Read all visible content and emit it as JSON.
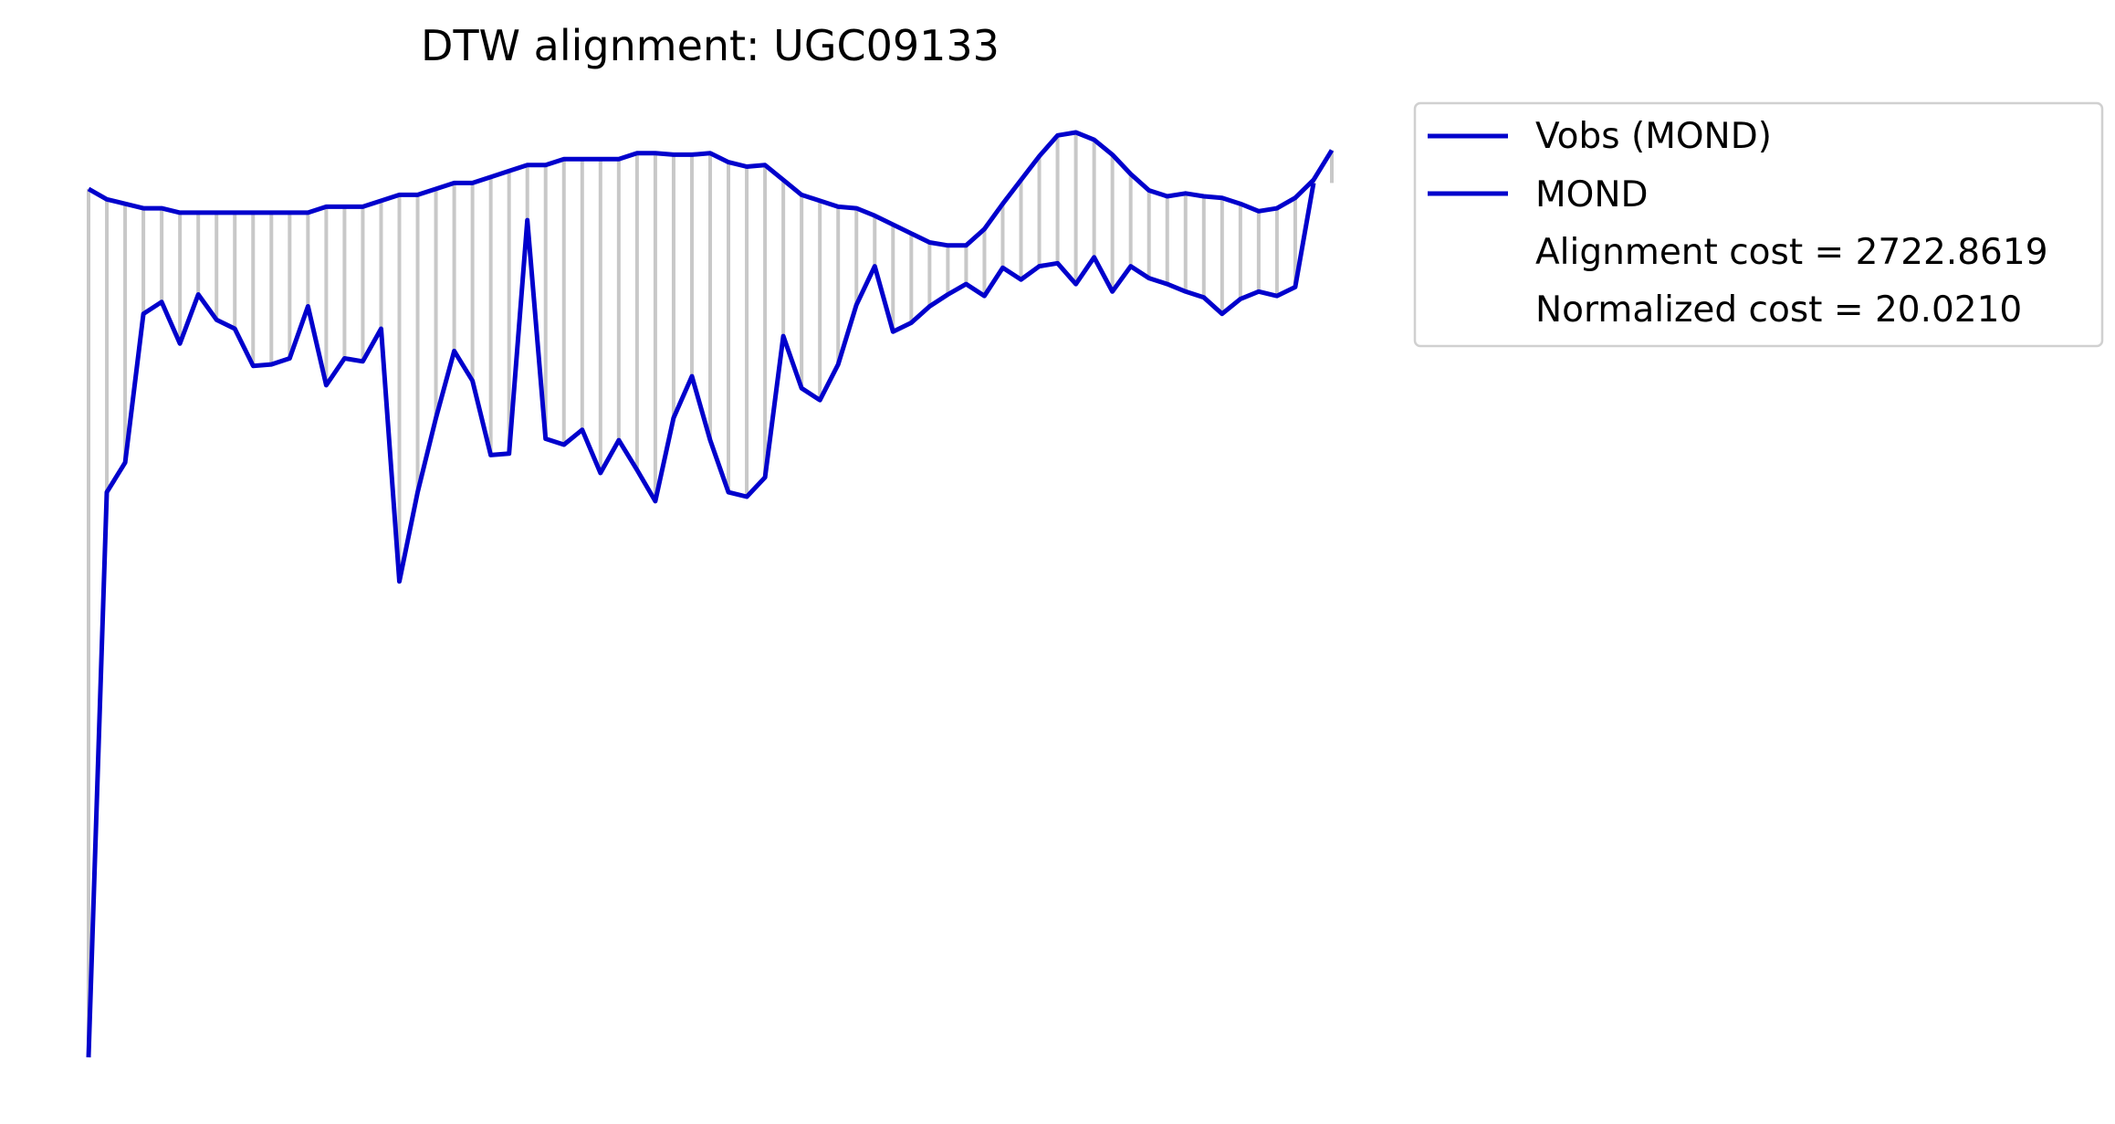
{
  "chart_data": {
    "type": "line",
    "title": "DTW alignment: UGC09133",
    "xlabel": "",
    "ylabel": "",
    "axes_visible": false,
    "grid": false,
    "legend_placement": "outside-top-right",
    "alignment_connectors_color": "#c8c8c8",
    "series": [
      {
        "name": "Vobs (MOND)",
        "color": "#0000cc",
        "values": [
          0.804,
          0.797,
          0.794,
          0.791,
          0.791,
          0.788,
          0.788,
          0.788,
          0.788,
          0.788,
          0.788,
          0.788,
          0.788,
          0.792,
          0.792,
          0.792,
          0.796,
          0.8,
          0.8,
          0.804,
          0.808,
          0.808,
          0.812,
          0.816,
          0.82,
          0.82,
          0.824,
          0.824,
          0.824,
          0.824,
          0.828,
          0.828,
          0.827,
          0.827,
          0.828,
          0.822,
          0.819,
          0.82,
          0.81,
          0.8,
          0.796,
          0.792,
          0.791,
          0.786,
          0.78,
          0.774,
          0.768,
          0.766,
          0.766,
          0.777,
          0.794,
          0.81,
          0.826,
          0.84,
          0.842,
          0.837,
          0.827,
          0.814,
          0.803,
          0.799,
          0.801,
          0.799,
          0.798,
          0.794,
          0.789,
          0.791,
          0.798,
          0.81,
          0.83
        ]
      },
      {
        "name": "MOND",
        "color": "#0000cc",
        "values": [
          0.22,
          0.6,
          0.62,
          0.72,
          0.728,
          0.7,
          0.733,
          0.716,
          0.71,
          0.685,
          0.686,
          0.69,
          0.725,
          0.672,
          0.69,
          0.688,
          0.71,
          0.54,
          0.6,
          0.65,
          0.695,
          0.675,
          0.625,
          0.626,
          0.783,
          0.636,
          0.632,
          0.642,
          0.613,
          0.635,
          0.615,
          0.594,
          0.65,
          0.678,
          0.635,
          0.6,
          0.597,
          0.61,
          0.705,
          0.67,
          0.662,
          0.686,
          0.726,
          0.752,
          0.708,
          0.714,
          0.725,
          0.733,
          0.74,
          0.732,
          0.751,
          0.743,
          0.752,
          0.754,
          0.74,
          0.758,
          0.735,
          0.752,
          0.744,
          0.74,
          0.735,
          0.731,
          0.72,
          0.73,
          0.735,
          0.732,
          0.738,
          0.808
        ]
      }
    ],
    "annotations": [
      "Alignment cost = 2722.8619",
      "Normalized cost = 20.0210"
    ]
  }
}
